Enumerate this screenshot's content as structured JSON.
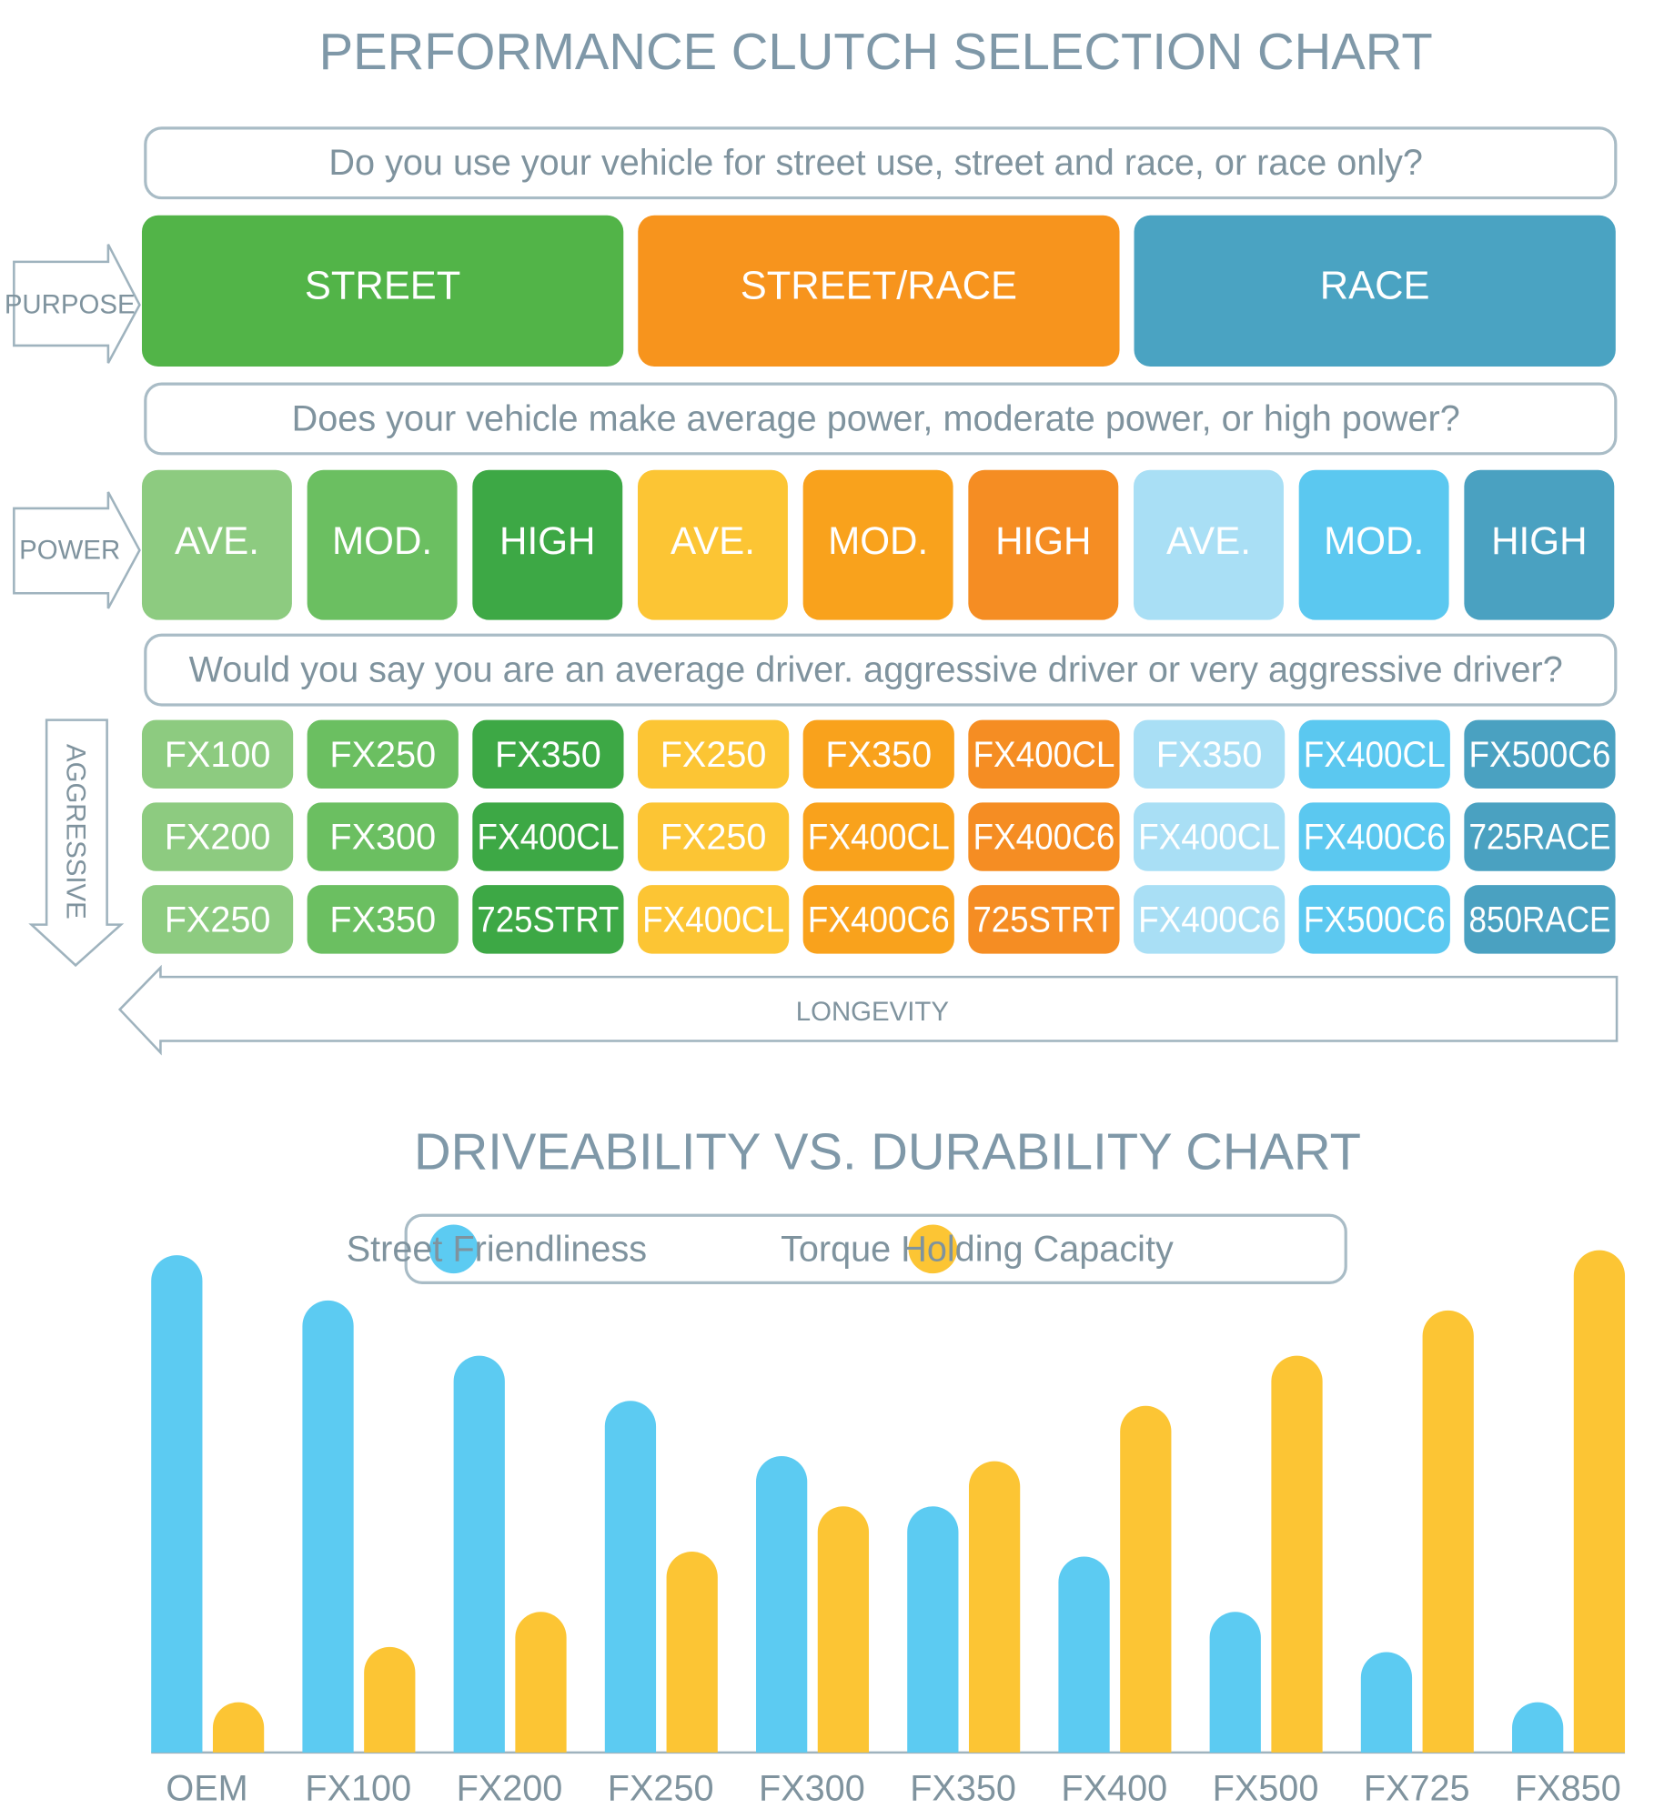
{
  "selection_chart": {
    "title": "PERFORMANCE CLUTCH SELECTION CHART",
    "questions": [
      "Do you use your vehicle for street use, street and race, or race only?",
      "Does your vehicle make average power, moderate power, or high power?",
      "Would you say you are an average driver. aggressive driver or very aggressive driver?"
    ],
    "side_labels": {
      "purpose": "PURPOSE",
      "power": "POWER",
      "aggressive": "AGGRESSIVE",
      "longevity": "LONGEVITY"
    },
    "purposes": [
      {
        "label": "STREET",
        "color": "#52b448"
      },
      {
        "label": "STREET/RACE",
        "color": "#f7941d"
      },
      {
        "label": "RACE",
        "color": "#4aa3c2"
      }
    ],
    "power": [
      {
        "label": "AVE.",
        "color": "#8dcb80"
      },
      {
        "label": "MOD.",
        "color": "#6bbf61"
      },
      {
        "label": "HIGH",
        "color": "#3da845"
      },
      {
        "label": "AVE.",
        "color": "#fcc534"
      },
      {
        "label": "MOD.",
        "color": "#f9a21c"
      },
      {
        "label": "HIGH",
        "color": "#f58d23"
      },
      {
        "label": "AVE.",
        "color": "#a9dff5"
      },
      {
        "label": "MOD.",
        "color": "#5bc8f0"
      },
      {
        "label": "HIGH",
        "color": "#4aa1c1"
      }
    ],
    "clutches": [
      [
        "FX100",
        "FX250",
        "FX350",
        "FX250",
        "FX350",
        "FX400CL",
        "FX350",
        "FX400CL",
        "FX500C6"
      ],
      [
        "FX200",
        "FX300",
        "FX400CL",
        "FX250",
        "FX400CL",
        "FX400C6",
        "FX400CL",
        "FX400C6",
        "725RACE"
      ],
      [
        "FX250",
        "FX350",
        "725STRT",
        "FX400CL",
        "FX400C6",
        "725STRT",
        "FX400C6",
        "FX500C6",
        "850RACE"
      ]
    ]
  },
  "chart_data": {
    "type": "bar",
    "title": "DRIVEABILITY VS. DURABILITY CHART",
    "categories": [
      "OEM",
      "FX100",
      "FX200",
      "FX250",
      "FX300",
      "FX350",
      "FX400",
      "FX500",
      "FX725",
      "FX850"
    ],
    "series": [
      {
        "name": "Street Friendliness",
        "color": "#5ccbf2",
        "values": [
          99,
          90,
          79,
          70,
          59,
          49,
          39,
          28,
          20,
          10
        ]
      },
      {
        "name": "Torque Holding Capacity",
        "color": "#fcc534",
        "values": [
          10,
          21,
          28,
          40,
          49,
          58,
          69,
          79,
          88,
          100
        ]
      }
    ],
    "ylim": [
      0,
      100
    ]
  }
}
